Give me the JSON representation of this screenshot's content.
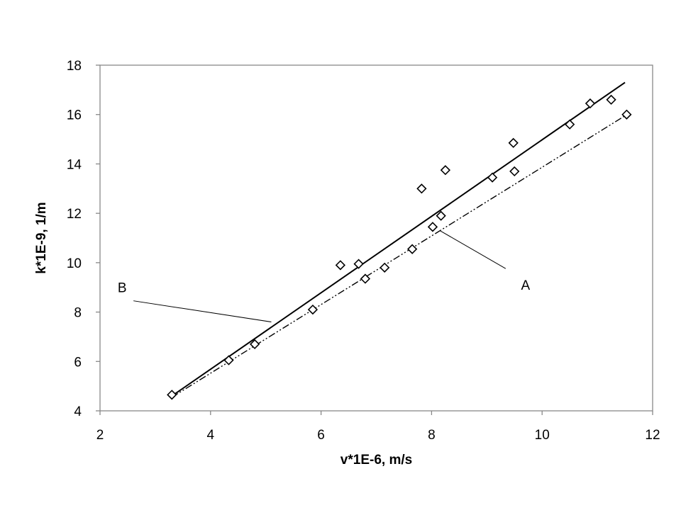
{
  "chart_data": {
    "type": "scatter",
    "title": "",
    "xlabel": "v*1E-6, m/s",
    "ylabel": "k*1E-9, 1/m",
    "xlim": [
      2,
      12
    ],
    "ylim": [
      4,
      18
    ],
    "xticks": [
      "2",
      "4",
      "6",
      "8",
      "10",
      "12"
    ],
    "yticks": [
      "4",
      "6",
      "8",
      "10",
      "12",
      "14",
      "16",
      "18"
    ],
    "grid": false,
    "legend": "none",
    "series": [
      {
        "marker": "diamond",
        "x": [
          3.3,
          4.33,
          4.8,
          5.85,
          6.35,
          6.68,
          6.8,
          7.15,
          7.65,
          7.82,
          8.02,
          8.17,
          8.25,
          9.1,
          9.48,
          9.5,
          10.5,
          10.87,
          11.25,
          11.53
        ],
        "y": [
          4.65,
          6.05,
          6.7,
          8.1,
          9.9,
          9.95,
          9.35,
          9.8,
          10.55,
          13.0,
          11.45,
          11.9,
          13.75,
          13.45,
          14.85,
          13.7,
          15.6,
          16.45,
          16.6,
          16.0
        ]
      },
      {
        "line_style": "solid",
        "x": [
          3.3,
          11.5
        ],
        "y": [
          4.6,
          17.3
        ]
      },
      {
        "line_style": "dash-dot-dot",
        "x": [
          3.3,
          11.5
        ],
        "y": [
          4.55,
          15.95
        ]
      }
    ],
    "annotations": [
      {
        "text": "A",
        "x": 9.7,
        "y": 8.9,
        "leader_to": [
          8.15,
          11.3
        ]
      },
      {
        "text": "B",
        "x": 2.4,
        "y": 8.8,
        "leader_to": [
          5.1,
          7.6
        ]
      }
    ],
    "colors": {
      "axis": "#888888",
      "marks": "#000000",
      "background": "#ffffff"
    }
  }
}
